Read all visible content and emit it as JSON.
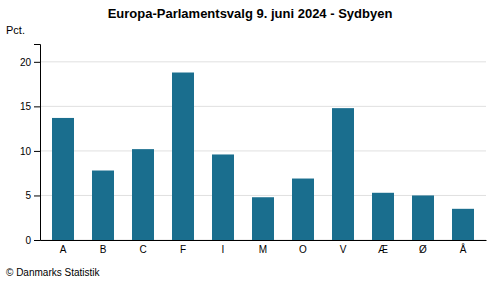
{
  "chart_data": {
    "type": "bar",
    "title": "Europa-Parlamentsvalg 9. juni 2024 - Sydbyen",
    "ylabel": "Pct.",
    "footer": "© Danmarks Statistik",
    "categories": [
      "A",
      "B",
      "C",
      "F",
      "I",
      "M",
      "O",
      "V",
      "Æ",
      "Ø",
      "Å"
    ],
    "values": [
      13.7,
      7.8,
      10.2,
      18.8,
      9.6,
      4.8,
      6.9,
      14.8,
      5.3,
      5.0,
      3.5
    ],
    "color": "#1a6e8e",
    "ylim": [
      0,
      22
    ],
    "yticks": [
      0,
      5,
      10,
      15,
      20
    ],
    "grid": true
  }
}
